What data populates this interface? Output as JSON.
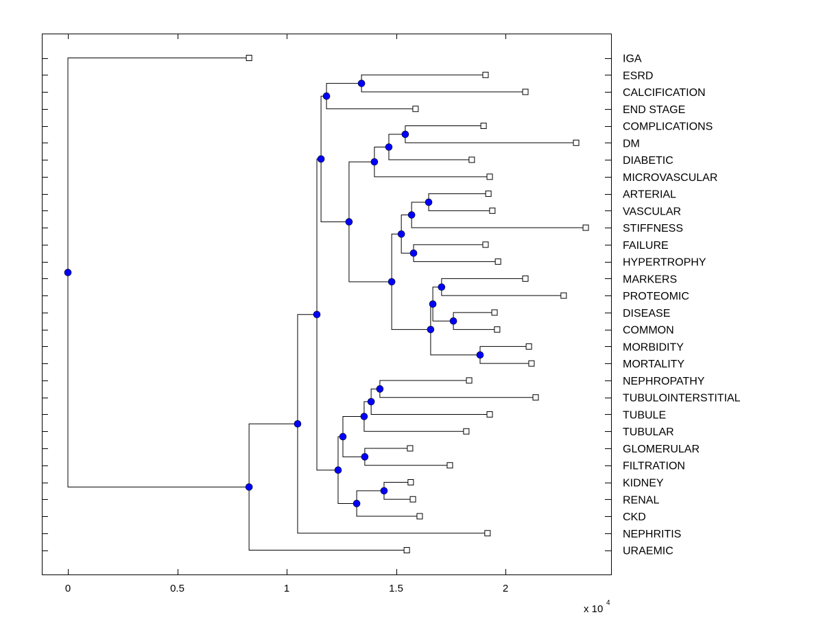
{
  "chart_data": {
    "type": "dendrogram",
    "title": "",
    "xlabel": "",
    "ylabel": "",
    "x_multiplier_label": "x 10",
    "x_multiplier_exponent": "4",
    "xlim": [
      -0.12,
      2.48
    ],
    "xticks": [
      0,
      0.5,
      1,
      1.5,
      2
    ],
    "xtick_labels": [
      "0",
      "0.5",
      "1",
      "1.5",
      "2"
    ],
    "grid": false,
    "node_color": "#0000ff",
    "leaf_marker": "open-square",
    "leaves": [
      {
        "label": "IGA",
        "x": 0.828
      },
      {
        "label": "ESRD",
        "x": 1.909
      },
      {
        "label": "CALCIFICATION",
        "x": 2.091
      },
      {
        "label": "END STAGE",
        "x": 1.589
      },
      {
        "label": "COMPLICATIONS",
        "x": 1.9
      },
      {
        "label": "DM",
        "x": 2.323
      },
      {
        "label": "DIABETIC",
        "x": 1.846
      },
      {
        "label": "MICROVASCULAR",
        "x": 1.928
      },
      {
        "label": "ARTERIAL",
        "x": 1.922
      },
      {
        "label": "VASCULAR",
        "x": 1.94
      },
      {
        "label": "STIFFNESS",
        "x": 2.367
      },
      {
        "label": "FAILURE",
        "x": 1.909
      },
      {
        "label": "HYPERTROPHY",
        "x": 1.966
      },
      {
        "label": "MARKERS",
        "x": 2.091
      },
      {
        "label": "PROTEOMIC",
        "x": 2.266
      },
      {
        "label": "DISEASE",
        "x": 1.95
      },
      {
        "label": "COMMON",
        "x": 1.962
      },
      {
        "label": "MORBIDITY",
        "x": 2.107
      },
      {
        "label": "MORTALITY",
        "x": 2.119
      },
      {
        "label": "NEPHROPATHY",
        "x": 1.834
      },
      {
        "label": "TUBULOINTERSTITIAL",
        "x": 2.138
      },
      {
        "label": "TUBULE",
        "x": 1.928
      },
      {
        "label": "TUBULAR",
        "x": 1.821
      },
      {
        "label": "GLOMERULAR",
        "x": 1.564
      },
      {
        "label": "FILTRATION",
        "x": 1.746
      },
      {
        "label": "KIDNEY",
        "x": 1.567
      },
      {
        "label": "RENAL",
        "x": 1.577
      },
      {
        "label": "CKD",
        "x": 1.608
      },
      {
        "label": "NEPHRITIS",
        "x": 1.918
      },
      {
        "label": "URAEMIC",
        "x": 1.549
      }
    ],
    "nodes": [
      {
        "id": "root",
        "x": 0.0,
        "children": [
          "L0",
          "A"
        ]
      },
      {
        "id": "A",
        "x": 0.828,
        "children": [
          "B",
          "L29"
        ]
      },
      {
        "id": "B",
        "x": 1.05,
        "children": [
          "C",
          "L28"
        ]
      },
      {
        "id": "C",
        "x": 1.138,
        "children": [
          "D",
          "U"
        ]
      },
      {
        "id": "D",
        "x": 1.157,
        "children": [
          "E",
          "G"
        ]
      },
      {
        "id": "E",
        "x": 1.182,
        "children": [
          "F",
          "L3"
        ]
      },
      {
        "id": "F",
        "x": 1.342,
        "children": [
          "L1",
          "L2"
        ]
      },
      {
        "id": "G",
        "x": 1.285,
        "children": [
          "H",
          "K"
        ]
      },
      {
        "id": "H",
        "x": 1.401,
        "children": [
          "I",
          "L7"
        ]
      },
      {
        "id": "I",
        "x": 1.467,
        "children": [
          "J",
          "L6"
        ]
      },
      {
        "id": "J",
        "x": 1.542,
        "children": [
          "L4",
          "L5"
        ]
      },
      {
        "id": "K",
        "x": 1.48,
        "children": [
          "L",
          "P"
        ]
      },
      {
        "id": "L",
        "x": 1.524,
        "children": [
          "M",
          "O"
        ]
      },
      {
        "id": "M",
        "x": 1.571,
        "children": [
          "N",
          "L10"
        ]
      },
      {
        "id": "N",
        "x": 1.649,
        "children": [
          "L8",
          "L9"
        ]
      },
      {
        "id": "O",
        "x": 1.58,
        "children": [
          "L11",
          "L12"
        ]
      },
      {
        "id": "P",
        "x": 1.658,
        "children": [
          "Q",
          "T"
        ]
      },
      {
        "id": "Q",
        "x": 1.668,
        "children": [
          "R",
          "S"
        ]
      },
      {
        "id": "R",
        "x": 1.708,
        "children": [
          "L13",
          "L14"
        ]
      },
      {
        "id": "S",
        "x": 1.762,
        "children": [
          "L15",
          "L16"
        ]
      },
      {
        "id": "T",
        "x": 1.884,
        "children": [
          "L17",
          "L18"
        ]
      },
      {
        "id": "U",
        "x": 1.235,
        "children": [
          "V",
          "AA"
        ]
      },
      {
        "id": "V",
        "x": 1.257,
        "children": [
          "W",
          "Z"
        ]
      },
      {
        "id": "W",
        "x": 1.354,
        "children": [
          "X",
          "L22"
        ]
      },
      {
        "id": "X",
        "x": 1.386,
        "children": [
          "Y",
          "L21"
        ]
      },
      {
        "id": "Y",
        "x": 1.426,
        "children": [
          "L19",
          "L20"
        ]
      },
      {
        "id": "Z",
        "x": 1.357,
        "children": [
          "L23",
          "L24"
        ]
      },
      {
        "id": "AA",
        "x": 1.32,
        "children": [
          "AB",
          "L27"
        ]
      },
      {
        "id": "AB",
        "x": 1.445,
        "children": [
          "L25",
          "L26"
        ]
      }
    ]
  }
}
